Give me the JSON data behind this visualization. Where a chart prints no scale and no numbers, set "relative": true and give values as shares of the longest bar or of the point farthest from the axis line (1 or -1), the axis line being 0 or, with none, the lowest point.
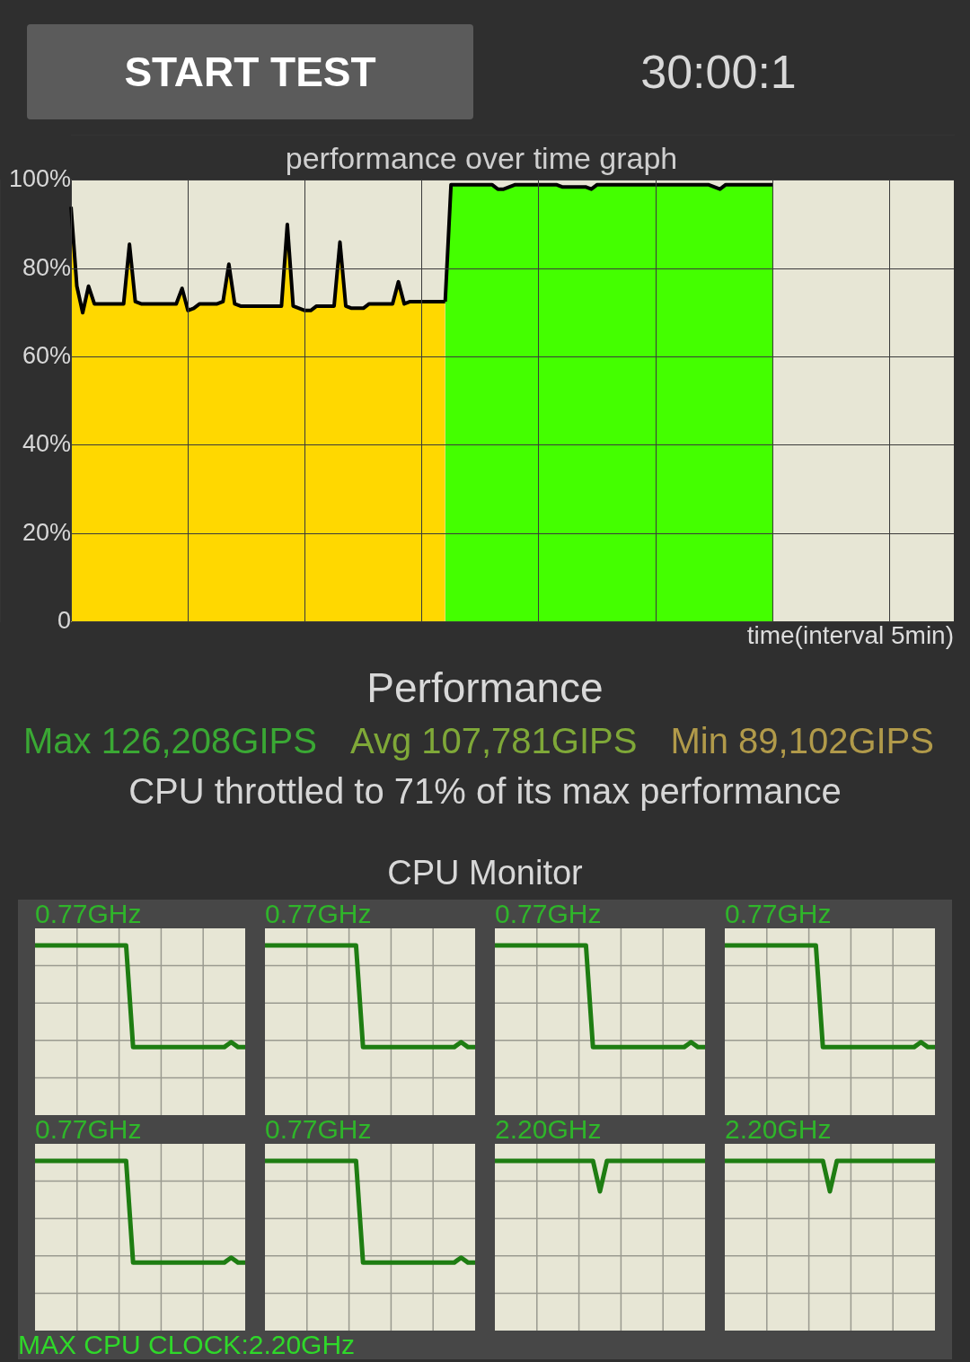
{
  "chart_data": [
    {
      "type": "other",
      "annotations": [
        "START TEST",
        "30:00:1"
      ]
    },
    {
      "type": "area",
      "title": "performance over time graph",
      "xlabel": "time(interval 5min)",
      "tick_labels": "y",
      "ylim": [
        0,
        100
      ],
      "yticks": [
        0,
        {
          "value": 20,
          "label": "20%"
        },
        {
          "value": 40,
          "label": "40%"
        },
        {
          "value": 60,
          "label": "60%"
        },
        {
          "value": 80,
          "label": "80%"
        },
        {
          "value": 100,
          "label": "100%"
        }
      ],
      "grid": true,
      "categories": [
        null,
        null,
        null,
        null,
        null,
        null,
        null,
        null,
        null,
        null,
        null,
        null,
        null,
        null,
        null,
        null,
        null,
        null,
        null,
        null,
        null,
        null,
        null,
        null,
        null,
        null,
        null,
        null,
        null,
        null,
        null,
        null,
        null,
        null,
        null,
        null,
        null,
        null,
        null,
        null,
        null,
        null,
        null,
        null,
        null,
        null,
        null,
        null,
        null,
        null,
        null,
        null,
        null,
        null,
        null,
        null,
        null,
        null,
        null,
        null,
        null,
        null,
        null,
        null,
        null,
        null,
        null,
        null,
        null,
        null,
        null,
        null,
        null,
        null,
        null,
        null,
        null,
        null,
        null,
        null,
        null,
        null,
        null,
        null,
        null,
        null,
        null,
        null,
        null,
        null,
        null,
        null,
        null,
        null,
        null,
        null,
        null,
        null,
        null,
        null,
        null,
        null,
        null,
        null,
        null,
        null,
        null,
        null,
        null,
        null,
        null,
        null,
        null,
        null,
        null,
        null,
        null,
        null,
        null,
        null,
        null,
        null,
        null,
        null,
        null,
        null,
        null,
        null,
        null,
        null,
        null,
        null,
        null,
        null,
        null,
        null,
        null,
        null,
        null,
        null,
        null,
        null,
        null,
        null,
        null,
        null,
        null,
        null,
        null,
        null,
        null,
        null
      ],
      "series": [
        {
          "color": "#ffd800",
          "values": [
            94,
            76,
            70,
            76,
            72,
            72,
            72,
            72,
            72,
            72,
            85.5,
            72.5,
            72,
            72,
            72,
            72,
            72,
            72,
            72,
            75.5,
            70.5,
            71,
            72,
            72,
            72,
            72,
            72.5,
            81,
            72,
            71.5,
            71.5,
            71.5,
            71.5,
            71.5,
            71.5,
            71.5,
            71.5,
            90,
            71.5,
            71,
            70.5,
            70.5,
            71.5,
            71.5,
            71.5,
            71.5,
            86,
            71.5,
            71,
            71,
            71,
            72,
            72,
            72,
            72,
            72,
            77,
            72,
            72.5,
            72.5,
            72.5,
            72.5,
            72.5,
            72.5,
            72.5,
            null,
            null,
            null,
            null,
            null,
            null,
            null,
            null,
            null,
            null,
            null,
            null,
            null,
            null,
            null,
            null,
            null,
            null,
            null,
            null,
            null,
            null,
            null,
            null,
            null,
            null,
            null,
            null,
            null,
            null,
            null,
            null,
            null,
            null,
            null,
            null,
            null,
            null,
            null,
            null,
            null,
            null,
            null,
            null,
            null,
            null,
            null,
            null,
            null,
            null,
            null,
            null,
            null,
            null,
            null,
            null,
            null,
            null,
            null,
            null,
            null,
            null,
            null,
            null,
            null,
            null,
            null,
            null,
            null,
            null,
            null,
            null,
            null,
            null,
            null,
            null,
            null,
            null,
            null,
            null,
            null,
            null,
            null,
            null,
            null,
            null,
            null
          ]
        },
        {
          "color": "#44ff00",
          "values": [
            null,
            null,
            null,
            null,
            null,
            null,
            null,
            null,
            null,
            null,
            null,
            null,
            null,
            null,
            null,
            null,
            null,
            null,
            null,
            null,
            null,
            null,
            null,
            null,
            null,
            null,
            null,
            null,
            null,
            null,
            null,
            null,
            null,
            null,
            null,
            null,
            null,
            null,
            null,
            null,
            null,
            null,
            null,
            null,
            null,
            null,
            null,
            null,
            null,
            null,
            null,
            null,
            null,
            null,
            null,
            null,
            null,
            null,
            null,
            null,
            null,
            null,
            null,
            null,
            72.5,
            99,
            99,
            99,
            99,
            99,
            99,
            99,
            99,
            98,
            98,
            98.5,
            99,
            99,
            99,
            99,
            99,
            99,
            99,
            99,
            98.5,
            98.5,
            98.5,
            98.5,
            98.5,
            98,
            99,
            99,
            99,
            99,
            99,
            99,
            99,
            99,
            99,
            99,
            99,
            99,
            99,
            99,
            99,
            99,
            99,
            99,
            99,
            99,
            98.5,
            98,
            99,
            99,
            99,
            99,
            99,
            99,
            99,
            99,
            99,
            null,
            null,
            null,
            null,
            null,
            null,
            null,
            null,
            null,
            null,
            null,
            null,
            null,
            null,
            null,
            null,
            null,
            null,
            null,
            null,
            null,
            null,
            null,
            null,
            null,
            null,
            null,
            null,
            null,
            null,
            null
          ]
        }
      ]
    },
    {
      "type": "other",
      "title": "Performance",
      "annotations": [
        "Max 126,208GIPS",
        "Avg 107,781GIPS",
        "Min 89,102GIPS",
        "CPU throttled to 71% of its max performance"
      ]
    },
    {
      "type": "other",
      "title": "CPU Monitor",
      "annotations": [
        "MAX CPU CLOCK:2.20GHz"
      ]
    },
    {
      "type": "line",
      "title": "0.77GHz",
      "relative": true,
      "grid": true,
      "categories": [
        null,
        null,
        null,
        null,
        null,
        null,
        null,
        null,
        null,
        null,
        null,
        null,
        null,
        null,
        null,
        null,
        null,
        null,
        null,
        null,
        null,
        null,
        null,
        null,
        null,
        null,
        null,
        null,
        null,
        null,
        null
      ],
      "series": [
        {
          "color": "#1e7d12",
          "values": [
            1,
            1,
            1,
            1,
            1,
            1,
            1,
            1,
            1,
            1,
            1,
            1,
            1,
            1,
            0.4,
            0.4,
            0.4,
            0.4,
            0.4,
            0.4,
            0.4,
            0.4,
            0.4,
            0.4,
            0.4,
            0.4,
            0.4,
            0.4,
            0.43,
            0.4,
            0.4
          ]
        }
      ]
    },
    {
      "type": "line",
      "title": "0.77GHz",
      "relative": true,
      "grid": true,
      "categories": [
        null,
        null,
        null,
        null,
        null,
        null,
        null,
        null,
        null,
        null,
        null,
        null,
        null,
        null,
        null,
        null,
        null,
        null,
        null,
        null,
        null,
        null,
        null,
        null,
        null,
        null,
        null,
        null,
        null,
        null,
        null
      ],
      "series": [
        {
          "color": "#1e7d12",
          "values": [
            1,
            1,
            1,
            1,
            1,
            1,
            1,
            1,
            1,
            1,
            1,
            1,
            1,
            1,
            0.4,
            0.4,
            0.4,
            0.4,
            0.4,
            0.4,
            0.4,
            0.4,
            0.4,
            0.4,
            0.4,
            0.4,
            0.4,
            0.4,
            0.43,
            0.4,
            0.4
          ]
        }
      ]
    },
    {
      "type": "line",
      "title": "0.77GHz",
      "relative": true,
      "grid": true,
      "categories": [
        null,
        null,
        null,
        null,
        null,
        null,
        null,
        null,
        null,
        null,
        null,
        null,
        null,
        null,
        null,
        null,
        null,
        null,
        null,
        null,
        null,
        null,
        null,
        null,
        null,
        null,
        null,
        null,
        null,
        null,
        null
      ],
      "series": [
        {
          "color": "#1e7d12",
          "values": [
            1,
            1,
            1,
            1,
            1,
            1,
            1,
            1,
            1,
            1,
            1,
            1,
            1,
            1,
            0.4,
            0.4,
            0.4,
            0.4,
            0.4,
            0.4,
            0.4,
            0.4,
            0.4,
            0.4,
            0.4,
            0.4,
            0.4,
            0.4,
            0.43,
            0.4,
            0.4
          ]
        }
      ]
    },
    {
      "type": "line",
      "title": "0.77GHz",
      "relative": true,
      "grid": true,
      "categories": [
        null,
        null,
        null,
        null,
        null,
        null,
        null,
        null,
        null,
        null,
        null,
        null,
        null,
        null,
        null,
        null,
        null,
        null,
        null,
        null,
        null,
        null,
        null,
        null,
        null,
        null,
        null,
        null,
        null,
        null,
        null
      ],
      "series": [
        {
          "color": "#1e7d12",
          "values": [
            1,
            1,
            1,
            1,
            1,
            1,
            1,
            1,
            1,
            1,
            1,
            1,
            1,
            1,
            0.4,
            0.4,
            0.4,
            0.4,
            0.4,
            0.4,
            0.4,
            0.4,
            0.4,
            0.4,
            0.4,
            0.4,
            0.4,
            0.4,
            0.43,
            0.4,
            0.4
          ]
        }
      ]
    },
    {
      "type": "line",
      "title": "0.77GHz",
      "relative": true,
      "grid": true,
      "categories": [
        null,
        null,
        null,
        null,
        null,
        null,
        null,
        null,
        null,
        null,
        null,
        null,
        null,
        null,
        null,
        null,
        null,
        null,
        null,
        null,
        null,
        null,
        null,
        null,
        null,
        null,
        null,
        null,
        null,
        null,
        null
      ],
      "series": [
        {
          "color": "#1e7d12",
          "values": [
            1,
            1,
            1,
            1,
            1,
            1,
            1,
            1,
            1,
            1,
            1,
            1,
            1,
            1,
            0.4,
            0.4,
            0.4,
            0.4,
            0.4,
            0.4,
            0.4,
            0.4,
            0.4,
            0.4,
            0.4,
            0.4,
            0.4,
            0.4,
            0.43,
            0.4,
            0.4
          ]
        }
      ]
    },
    {
      "type": "line",
      "title": "0.77GHz",
      "relative": true,
      "grid": true,
      "categories": [
        null,
        null,
        null,
        null,
        null,
        null,
        null,
        null,
        null,
        null,
        null,
        null,
        null,
        null,
        null,
        null,
        null,
        null,
        null,
        null,
        null,
        null,
        null,
        null,
        null,
        null,
        null,
        null,
        null,
        null,
        null
      ],
      "series": [
        {
          "color": "#1e7d12",
          "values": [
            1,
            1,
            1,
            1,
            1,
            1,
            1,
            1,
            1,
            1,
            1,
            1,
            1,
            1,
            0.4,
            0.4,
            0.4,
            0.4,
            0.4,
            0.4,
            0.4,
            0.4,
            0.4,
            0.4,
            0.4,
            0.4,
            0.4,
            0.4,
            0.43,
            0.4,
            0.4
          ]
        }
      ]
    },
    {
      "type": "line",
      "title": "2.20GHz",
      "relative": true,
      "grid": true,
      "categories": [
        null,
        null,
        null,
        null,
        null,
        null,
        null,
        null,
        null,
        null,
        null,
        null,
        null,
        null,
        null,
        null,
        null,
        null,
        null,
        null,
        null,
        null,
        null,
        null,
        null,
        null,
        null,
        null,
        null,
        null,
        null
      ],
      "series": [
        {
          "color": "#1e7d12",
          "values": [
            1,
            1,
            1,
            1,
            1,
            1,
            1,
            1,
            1,
            1,
            1,
            1,
            1,
            1,
            1,
            0.82,
            1,
            1,
            1,
            1,
            1,
            1,
            1,
            1,
            1,
            1,
            1,
            1,
            1,
            1,
            1
          ]
        }
      ]
    },
    {
      "type": "line",
      "title": "2.20GHz",
      "relative": true,
      "grid": true,
      "categories": [
        null,
        null,
        null,
        null,
        null,
        null,
        null,
        null,
        null,
        null,
        null,
        null,
        null,
        null,
        null,
        null,
        null,
        null,
        null,
        null,
        null,
        null,
        null,
        null,
        null,
        null,
        null,
        null,
        null,
        null,
        null
      ],
      "series": [
        {
          "color": "#1e7d12",
          "values": [
            1,
            1,
            1,
            1,
            1,
            1,
            1,
            1,
            1,
            1,
            1,
            1,
            1,
            1,
            1,
            0.82,
            1,
            1,
            1,
            1,
            1,
            1,
            1,
            1,
            1,
            1,
            1,
            1,
            1,
            1,
            1
          ]
        }
      ]
    }
  ]
}
